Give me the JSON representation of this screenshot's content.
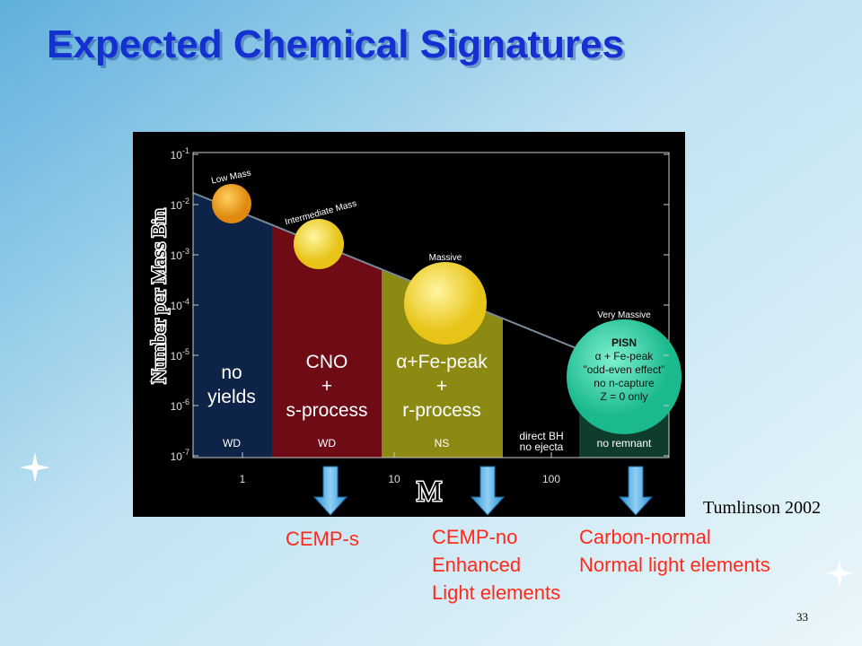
{
  "title": "Expected Chemical Signatures",
  "figure": {
    "y_axis_label": "Number per Mass Bin",
    "x_axis_label": "M",
    "y_ticks": [
      {
        "base": "10",
        "exp": "-1"
      },
      {
        "base": "10",
        "exp": "-2"
      },
      {
        "base": "10",
        "exp": "-3"
      },
      {
        "base": "10",
        "exp": "-4"
      },
      {
        "base": "10",
        "exp": "-5"
      },
      {
        "base": "10",
        "exp": "-6"
      },
      {
        "base": "10",
        "exp": "-7"
      }
    ],
    "x_ticks": [
      "1",
      "10",
      "100"
    ],
    "stars": [
      "Low Mass",
      "Intermediate Mass",
      "Massive",
      "Very Massive"
    ],
    "regions": [
      {
        "lines": [
          "no",
          "yields"
        ],
        "remnant": [
          "WD"
        ]
      },
      {
        "lines": [
          "CNO",
          "+",
          "s-process"
        ],
        "remnant": [
          "WD"
        ]
      },
      {
        "lines": [
          "α+Fe-peak",
          "+",
          "r-process"
        ],
        "remnant": [
          "NS"
        ]
      },
      {
        "lines": [],
        "remnant": [
          "direct BH",
          "no ejecta"
        ]
      },
      {
        "lines": [
          "PISN",
          "α + Fe-peak",
          "\"odd-even effect\"",
          "no n-capture",
          "Z = 0 only"
        ],
        "remnant": [
          "no remnant"
        ]
      }
    ]
  },
  "outcomes": [
    {
      "lines": [
        "CEMP-s"
      ]
    },
    {
      "lines": [
        "CEMP-no",
        "Enhanced",
        "Light elements"
      ]
    },
    {
      "lines": [
        "Carbon-normal",
        "Normal light elements"
      ]
    }
  ],
  "citation": "Tumlinson 2002",
  "page_number": "33"
}
